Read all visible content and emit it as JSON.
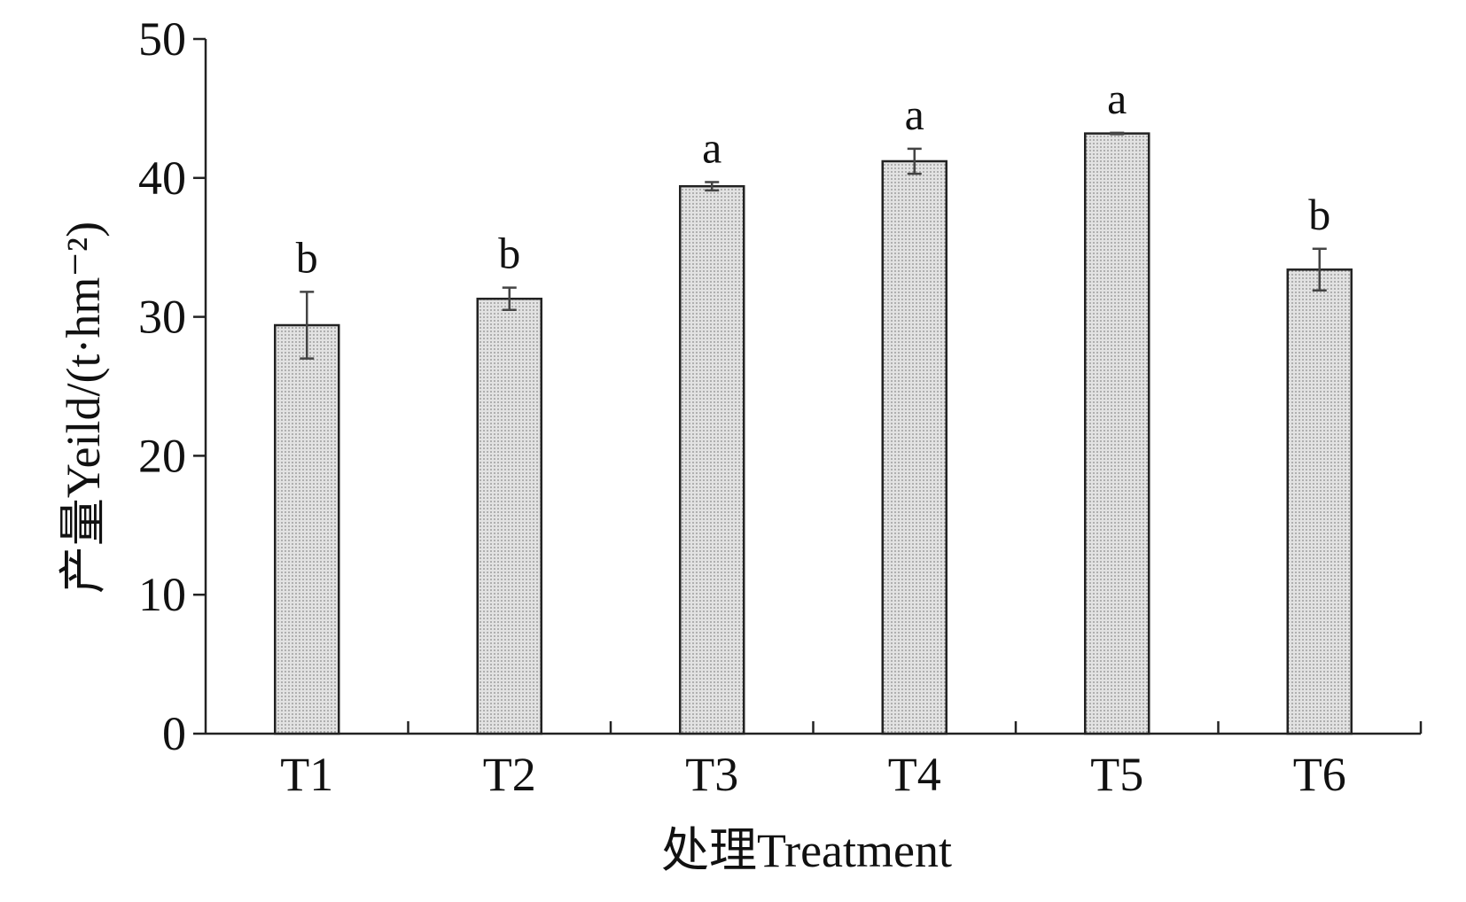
{
  "chart_data": {
    "type": "bar",
    "title": "",
    "xlabel": "处理Treatment",
    "ylabel": "产量Yeild/(t·hm⁻²)",
    "ylim": [
      0,
      50
    ],
    "yticks": [
      "0",
      "10",
      "20",
      "30",
      "40",
      "50"
    ],
    "categories": [
      "T1",
      "T2",
      "T3",
      "T4",
      "T5",
      "T6"
    ],
    "values": [
      29.4,
      31.3,
      39.4,
      41.2,
      43.2,
      33.4
    ],
    "errors": [
      2.4,
      0.8,
      0.3,
      0.9,
      0.05,
      1.5
    ],
    "significance": [
      "b",
      "b",
      "a",
      "a",
      "a",
      "b"
    ],
    "bar_fill": "#d4d4d4",
    "bar_pattern": "dotted",
    "grid": false,
    "legend": "none"
  }
}
